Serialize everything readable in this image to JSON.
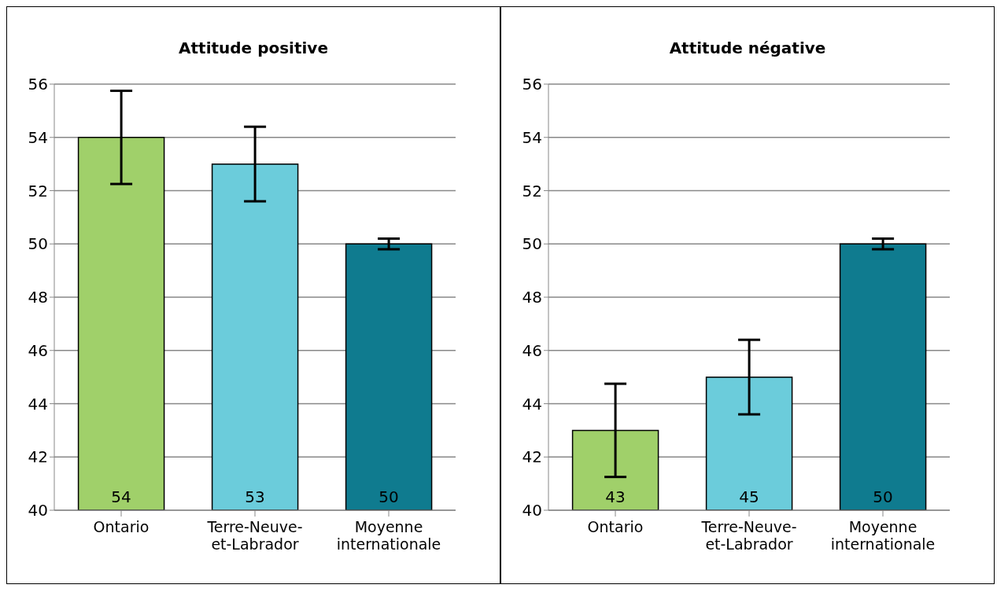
{
  "chart_data": [
    {
      "type": "bar",
      "title": "Attitude positive",
      "categories": [
        "Ontario",
        "Terre-Neuve-et-Labrador",
        "Moyenne internationale"
      ],
      "values": [
        54,
        53,
        50
      ],
      "colors": [
        "#a0d06a",
        "#6bccdb",
        "#0f7b8f"
      ],
      "errors": [
        1.75,
        1.4,
        0.2
      ],
      "data_labels": true,
      "ylim": [
        40,
        56
      ],
      "yticks": [
        40,
        42,
        44,
        46,
        48,
        50,
        52,
        54,
        56
      ],
      "grid": "y"
    },
    {
      "type": "bar",
      "title": "Attitude négative",
      "categories": [
        "Ontario",
        "Terre-Neuve-et-Labrador",
        "Moyenne internationale"
      ],
      "values": [
        43,
        45,
        50
      ],
      "colors": [
        "#a0d06a",
        "#6bccdb",
        "#0f7b8f"
      ],
      "errors": [
        1.75,
        1.4,
        0.2
      ],
      "data_labels": true,
      "ylim": [
        40,
        56
      ],
      "yticks": [
        40,
        42,
        44,
        46,
        48,
        50,
        52,
        54,
        56
      ],
      "grid": "y"
    }
  ]
}
